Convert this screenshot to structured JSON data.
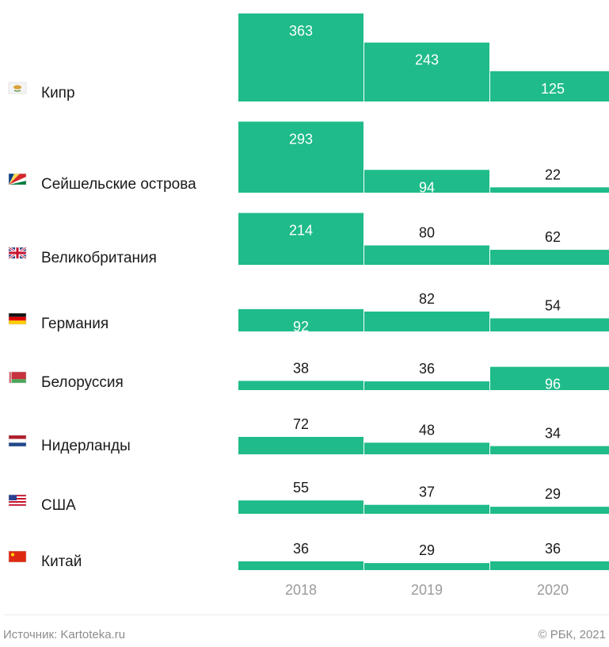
{
  "chart_data": {
    "type": "bar",
    "years": [
      "2018",
      "2019",
      "2020"
    ],
    "bar_color": "#1fbb8a",
    "rows": [
      {
        "country": "Кипр",
        "flag": "cyprus-flag-icon",
        "values": [
          363,
          243,
          125
        ]
      },
      {
        "country": "Сейшельские острова",
        "flag": "seychelles-flag-icon",
        "values": [
          293,
          94,
          22
        ]
      },
      {
        "country": "Великобритания",
        "flag": "uk-flag-icon",
        "values": [
          214,
          80,
          62
        ]
      },
      {
        "country": "Германия",
        "flag": "germany-flag-icon",
        "values": [
          92,
          82,
          54
        ]
      },
      {
        "country": "Белоруссия",
        "flag": "belarus-flag-icon",
        "values": [
          38,
          36,
          96
        ]
      },
      {
        "country": "Нидерланды",
        "flag": "netherlands-flag-icon",
        "values": [
          72,
          48,
          34
        ]
      },
      {
        "country": "США",
        "flag": "usa-flag-icon",
        "values": [
          55,
          37,
          29
        ]
      },
      {
        "country": "Китай",
        "flag": "china-flag-icon",
        "values": [
          36,
          29,
          36
        ]
      }
    ]
  },
  "footer": {
    "source": "Источник: Kartoteka.ru",
    "copyright": "© РБК, 2021"
  }
}
